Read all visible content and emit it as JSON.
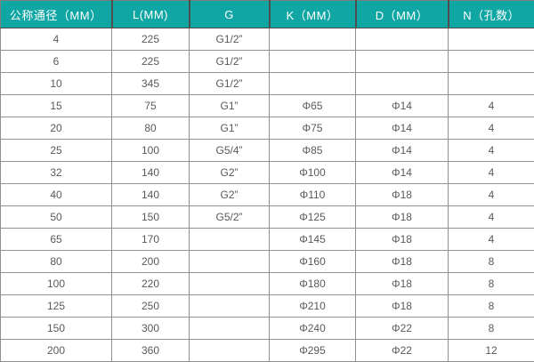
{
  "colors": {
    "header_bg": "#10a6a4",
    "header_text": "#ffffff",
    "body_text": "#58595b",
    "grid_line": "#8f8f8f",
    "header_divider": "#4f4f4f",
    "row_bg": "#ffffff"
  },
  "table": {
    "headers": [
      "公称通径（MM）",
      "L(MM)",
      "G",
      "K（MM）",
      "D（MM）",
      "N（孔数）"
    ],
    "rows": [
      [
        "4",
        "225",
        "G1/2”",
        "",
        "",
        ""
      ],
      [
        "6",
        "225",
        "G1/2”",
        "",
        "",
        ""
      ],
      [
        "10",
        "345",
        "G1/2”",
        "",
        "",
        ""
      ],
      [
        "15",
        "75",
        "G1”",
        "Φ65",
        "Φ14",
        "4"
      ],
      [
        "20",
        "80",
        "G1”",
        "Φ75",
        "Φ14",
        "4"
      ],
      [
        "25",
        "100",
        "G5/4”",
        "Φ85",
        "Φ14",
        "4"
      ],
      [
        "32",
        "140",
        "G2”",
        "Φ100",
        "Φ14",
        "4"
      ],
      [
        "40",
        "140",
        "G2”",
        "Φ110",
        "Φ18",
        "4"
      ],
      [
        "50",
        "150",
        "G5/2”",
        "Φ125",
        "Φ18",
        "4"
      ],
      [
        "65",
        "170",
        "",
        "Φ145",
        "Φ18",
        "4"
      ],
      [
        "80",
        "200",
        "",
        "Φ160",
        "Φ18",
        "8"
      ],
      [
        "100",
        "220",
        "",
        "Φ180",
        "Φ18",
        "8"
      ],
      [
        "125",
        "250",
        "",
        "Φ210",
        "Φ18",
        "8"
      ],
      [
        "150",
        "300",
        "",
        "Φ240",
        "Φ22",
        "8"
      ],
      [
        "200",
        "360",
        "",
        "Φ295",
        "Φ22",
        "12"
      ]
    ]
  }
}
